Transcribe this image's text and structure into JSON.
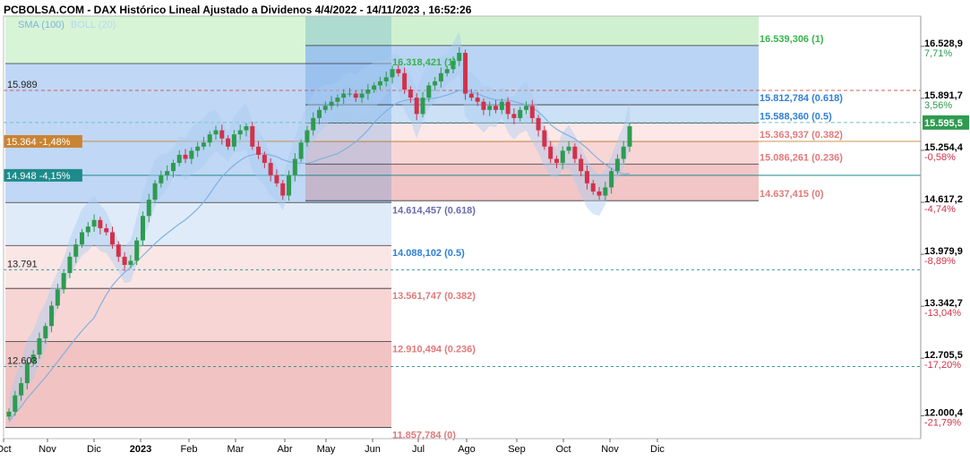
{
  "title": "PCBOLSA.COM - DAX Histórico Lineal Ajustado a Dividenos 4/4/2022 - 14/11/2023 , 16:52:26",
  "legend": {
    "sma_label": "SMA (100)",
    "boll_label": "BOLL (20)"
  },
  "colors": {
    "up": "#2e9b4f",
    "down": "#d3314a",
    "sma": "#7fb2e0",
    "boll_fill": "#a9cdf0",
    "fib_blue": "#2f7fd6",
    "fib_red": "#e07a7a",
    "fib_green": "#36b34a",
    "last_tag": "#2e9b4f",
    "price_tag": "#c98334",
    "teal_tag": "#1f8a8a"
  },
  "chart_data": {
    "type": "candlestick",
    "title": "PCBOLSA.COM - DAX Histórico Lineal Ajustado a Dividenos 4/4/2022 - 14/11/2023 , 16:52:26",
    "ylim": [
      11720,
      16900
    ],
    "x_ticks": [
      "Oct",
      "Nov",
      "Dic",
      "2023",
      "Feb",
      "Mar",
      "Abr",
      "May",
      "Jun",
      "Jul",
      "Ago",
      "Sep",
      "Oct",
      "Nov",
      "Dic"
    ],
    "y_axis": [
      {
        "price": "16.528,9",
        "pct": "7,71%"
      },
      {
        "price": "15.891,7",
        "pct": "3,56%"
      },
      {
        "price": "15.254,4",
        "pct": "-0,58%"
      },
      {
        "price": "14.617,2",
        "pct": "-4,74%"
      },
      {
        "price": "13.979,9",
        "pct": "-8,89%"
      },
      {
        "price": "13.342,7",
        "pct": "-13,04%"
      },
      {
        "price": "12.705,5",
        "pct": "-17,20%"
      },
      {
        "price": "12.000,4",
        "pct": "-21,79%"
      }
    ],
    "last_price": {
      "label": "15.595,5",
      "value": 15595.5
    },
    "ref_levels": [
      {
        "label": "15.989",
        "value": 15989
      },
      {
        "label": "15.364 -1,48%",
        "value": 15364
      },
      {
        "label": "14.948 -4,15%",
        "value": 14948
      },
      {
        "label": "13.791",
        "value": 13791
      },
      {
        "label": "12.603",
        "value": 12603
      }
    ],
    "fib_long": [
      {
        "label": "16.318,421 (1)",
        "value": 16318.421
      },
      {
        "label": "14.614,457 (0.618)",
        "value": 14614.457
      },
      {
        "label": "14.088,102 (0.5)",
        "value": 14088.102
      },
      {
        "label": "13.561,747 (0.382)",
        "value": 13561.747
      },
      {
        "label": "12.910,494 (0.236)",
        "value": 12910.494
      },
      {
        "label": "11.857,784 (0)",
        "value": 11857.784
      }
    ],
    "fib_short": [
      {
        "label": "16.539,306 (1)",
        "value": 16539.306
      },
      {
        "label": "15.812,784 (0.618)",
        "value": 15812.784
      },
      {
        "label": "15.588,360 (0.5)",
        "value": 15588.36
      },
      {
        "label": "15.363,937 (0.382)",
        "value": 15363.937
      },
      {
        "label": "15.086,261 (0.236)",
        "value": 15086.261
      },
      {
        "label": "14.637,415 (0)",
        "value": 14637.415
      }
    ],
    "closes": [
      12050,
      12250,
      12400,
      12650,
      12750,
      12950,
      13100,
      13350,
      13550,
      13750,
      13950,
      14100,
      14250,
      14320,
      14400,
      14300,
      14250,
      14100,
      13950,
      13850,
      13900,
      14150,
      14450,
      14650,
      14850,
      14950,
      15000,
      15100,
      15200,
      15150,
      15250,
      15300,
      15350,
      15450,
      15500,
      15400,
      15300,
      15450,
      15500,
      15550,
      15300,
      15200,
      15100,
      14950,
      14850,
      14700,
      14950,
      15150,
      15350,
      15500,
      15650,
      15750,
      15800,
      15850,
      15900,
      15950,
      15950,
      15900,
      15950,
      16000,
      16050,
      16100,
      16150,
      16250,
      16200,
      16000,
      15900,
      15700,
      15900,
      16050,
      16100,
      16200,
      16250,
      16350,
      16450,
      15950,
      15900,
      15850,
      15750,
      15800,
      15750,
      15850,
      15700,
      15650,
      15750,
      15800,
      15650,
      15500,
      15300,
      15150,
      15100,
      15250,
      15300,
      15150,
      15000,
      14850,
      14750,
      14700,
      14800,
      15000,
      15150,
      15300,
      15550
    ]
  }
}
